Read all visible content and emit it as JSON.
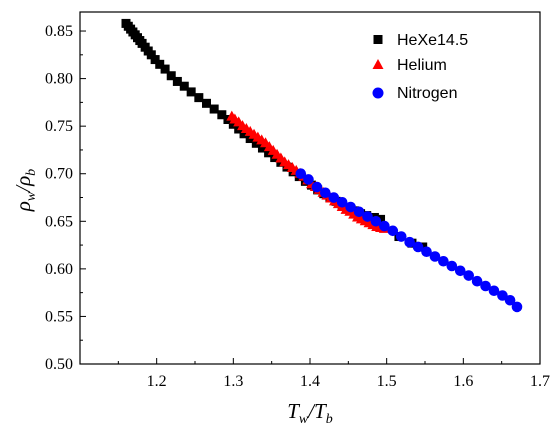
{
  "chart_data": {
    "type": "scatter",
    "xlabel": {
      "main": "T",
      "sub": "w",
      "sep": "/",
      "main2": "T",
      "sub2": "b"
    },
    "ylabel": {
      "main": "ρ",
      "sub": "w",
      "sep": "/",
      "main2": "ρ",
      "sub2": "b"
    },
    "xlim": [
      1.1,
      1.7
    ],
    "ylim": [
      0.5,
      0.87
    ],
    "xticks": [
      1.2,
      1.3,
      1.4,
      1.5,
      1.6,
      1.7
    ],
    "xtick_labels": [
      "1.2",
      "1.3",
      "1.4",
      "1.5",
      "1.6",
      "1.7"
    ],
    "yticks": [
      0.5,
      0.55,
      0.6,
      0.65,
      0.7,
      0.75,
      0.8,
      0.85
    ],
    "ytick_labels": [
      "0.50",
      "0.55",
      "0.60",
      "0.65",
      "0.70",
      "0.75",
      "0.80",
      "0.85"
    ],
    "grid": false,
    "legend_position": "top-right",
    "series": [
      {
        "name": "HeXe14.5",
        "marker": "square",
        "color": "#000000",
        "points": [
          [
            1.16,
            0.858
          ],
          [
            1.163,
            0.855
          ],
          [
            1.166,
            0.852
          ],
          [
            1.169,
            0.849
          ],
          [
            1.172,
            0.846
          ],
          [
            1.175,
            0.843
          ],
          [
            1.178,
            0.84
          ],
          [
            1.181,
            0.837
          ],
          [
            1.185,
            0.833
          ],
          [
            1.189,
            0.829
          ],
          [
            1.193,
            0.825
          ],
          [
            1.198,
            0.82
          ],
          [
            1.204,
            0.815
          ],
          [
            1.211,
            0.81
          ],
          [
            1.219,
            0.803
          ],
          [
            1.227,
            0.797
          ],
          [
            1.236,
            0.792
          ],
          [
            1.245,
            0.786
          ],
          [
            1.255,
            0.78
          ],
          [
            1.265,
            0.774
          ],
          [
            1.275,
            0.768
          ],
          [
            1.285,
            0.762
          ],
          [
            1.293,
            0.757
          ],
          [
            1.3,
            0.752
          ],
          [
            1.307,
            0.747
          ],
          [
            1.314,
            0.742
          ],
          [
            1.322,
            0.737
          ],
          [
            1.33,
            0.732
          ],
          [
            1.338,
            0.727
          ],
          [
            1.346,
            0.722
          ],
          [
            1.354,
            0.717
          ],
          [
            1.362,
            0.712
          ],
          [
            1.37,
            0.707
          ],
          [
            1.378,
            0.702
          ],
          [
            1.386,
            0.697
          ],
          [
            1.394,
            0.692
          ],
          [
            1.402,
            0.688
          ],
          [
            1.41,
            0.683
          ],
          [
            1.418,
            0.679
          ],
          [
            1.426,
            0.675
          ],
          [
            1.434,
            0.671
          ],
          [
            1.442,
            0.667
          ],
          [
            1.45,
            0.664
          ],
          [
            1.458,
            0.661
          ],
          [
            1.466,
            0.658
          ],
          [
            1.474,
            0.656
          ],
          [
            1.484,
            0.654
          ],
          [
            1.492,
            0.652
          ],
          [
            1.516,
            0.634
          ],
          [
            1.533,
            0.627
          ],
          [
            1.547,
            0.623
          ]
        ]
      },
      {
        "name": "Helium",
        "marker": "triangle",
        "color": "#ff0000",
        "points": [
          [
            1.298,
            0.76
          ],
          [
            1.302,
            0.757
          ],
          [
            1.307,
            0.754
          ],
          [
            1.312,
            0.75
          ],
          [
            1.317,
            0.747
          ],
          [
            1.322,
            0.744
          ],
          [
            1.327,
            0.741
          ],
          [
            1.332,
            0.738
          ],
          [
            1.337,
            0.735
          ],
          [
            1.342,
            0.732
          ],
          [
            1.347,
            0.728
          ],
          [
            1.352,
            0.724
          ],
          [
            1.357,
            0.72
          ],
          [
            1.362,
            0.716
          ],
          [
            1.367,
            0.712
          ],
          [
            1.372,
            0.709
          ],
          [
            1.377,
            0.706
          ],
          [
            1.382,
            0.703
          ],
          [
            1.387,
            0.7
          ],
          [
            1.392,
            0.697
          ],
          [
            1.397,
            0.693
          ],
          [
            1.402,
            0.689
          ],
          [
            1.407,
            0.686
          ],
          [
            1.412,
            0.683
          ],
          [
            1.417,
            0.68
          ],
          [
            1.422,
            0.677
          ],
          [
            1.427,
            0.674
          ],
          [
            1.432,
            0.671
          ],
          [
            1.437,
            0.668
          ],
          [
            1.442,
            0.665
          ],
          [
            1.447,
            0.662
          ],
          [
            1.452,
            0.66
          ],
          [
            1.457,
            0.657
          ],
          [
            1.462,
            0.654
          ],
          [
            1.467,
            0.652
          ],
          [
            1.472,
            0.65
          ],
          [
            1.477,
            0.648
          ],
          [
            1.482,
            0.646
          ],
          [
            1.487,
            0.644
          ],
          [
            1.492,
            0.643
          ],
          [
            1.497,
            0.642
          ]
        ]
      },
      {
        "name": "Nitrogen",
        "marker": "circle",
        "color": "#0000ff",
        "points": [
          [
            1.388,
            0.7
          ],
          [
            1.398,
            0.694
          ],
          [
            1.409,
            0.686
          ],
          [
            1.42,
            0.68
          ],
          [
            1.431,
            0.675
          ],
          [
            1.442,
            0.67
          ],
          [
            1.453,
            0.665
          ],
          [
            1.464,
            0.66
          ],
          [
            1.475,
            0.655
          ],
          [
            1.486,
            0.65
          ],
          [
            1.497,
            0.645
          ],
          [
            1.508,
            0.64
          ],
          [
            1.519,
            0.634
          ],
          [
            1.53,
            0.628
          ],
          [
            1.541,
            0.623
          ],
          [
            1.552,
            0.618
          ],
          [
            1.563,
            0.613
          ],
          [
            1.574,
            0.608
          ],
          [
            1.585,
            0.603
          ],
          [
            1.596,
            0.598
          ],
          [
            1.607,
            0.593
          ],
          [
            1.618,
            0.587
          ],
          [
            1.629,
            0.582
          ],
          [
            1.64,
            0.577
          ],
          [
            1.651,
            0.572
          ],
          [
            1.661,
            0.567
          ],
          [
            1.67,
            0.56
          ]
        ]
      }
    ]
  }
}
